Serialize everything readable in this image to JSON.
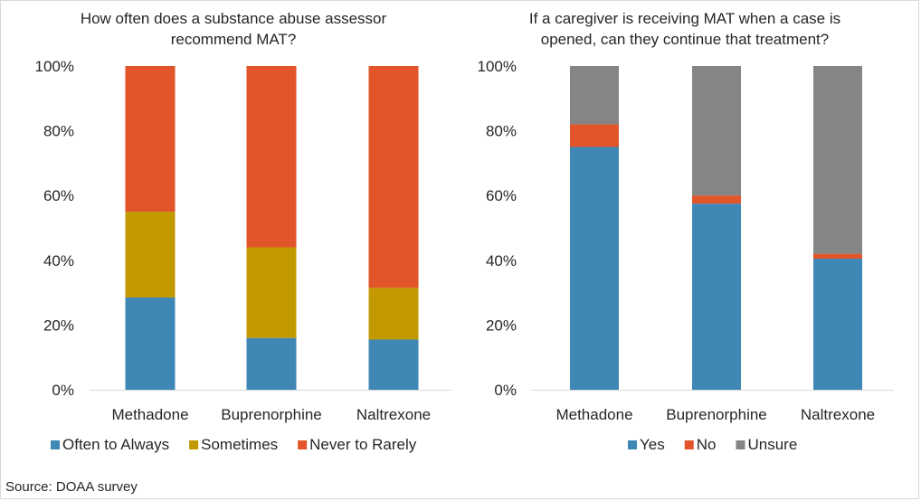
{
  "source": "Source: DOAA survey",
  "chart_data": [
    {
      "type": "bar",
      "stacked": true,
      "title": "How often does a substance abuse assessor recommend MAT?",
      "title_lines": [
        "How often does a substance abuse assessor",
        "recommend MAT?"
      ],
      "categories": [
        "Methadone",
        "Buprenorphine",
        "Naltrexone"
      ],
      "series": [
        {
          "name": "Often to Always",
          "color": "#3f87b5",
          "values": [
            28.5,
            16,
            15.5
          ]
        },
        {
          "name": "Sometimes",
          "color": "#c39900",
          "values": [
            26.5,
            28,
            16
          ]
        },
        {
          "name": "Never to Rarely",
          "color": "#e2552a",
          "values": [
            45,
            56,
            68.5
          ]
        }
      ],
      "ylim": [
        0,
        100
      ],
      "yticks": [
        "0%",
        "20%",
        "40%",
        "60%",
        "80%",
        "100%"
      ],
      "grid": false,
      "legend": "bottom"
    },
    {
      "type": "bar",
      "stacked": true,
      "title": "If a caregiver is receiving MAT when a case is opened, can they continue that treatment?",
      "title_lines": [
        "If a caregiver is receiving MAT when a case is",
        "opened, can they continue that treatment?"
      ],
      "categories": [
        "Methadone",
        "Buprenorphine",
        "Naltrexone"
      ],
      "series": [
        {
          "name": "Yes",
          "color": "#3f87b5",
          "values": [
            75,
            57.5,
            40.5
          ]
        },
        {
          "name": "No",
          "color": "#e2552a",
          "values": [
            7,
            2.5,
            1.5
          ]
        },
        {
          "name": "Unsure",
          "color": "#858585",
          "values": [
            18,
            40,
            58
          ]
        }
      ],
      "ylim": [
        0,
        100
      ],
      "yticks": [
        "0%",
        "20%",
        "40%",
        "60%",
        "80%",
        "100%"
      ],
      "grid": false,
      "legend": "bottom"
    }
  ]
}
